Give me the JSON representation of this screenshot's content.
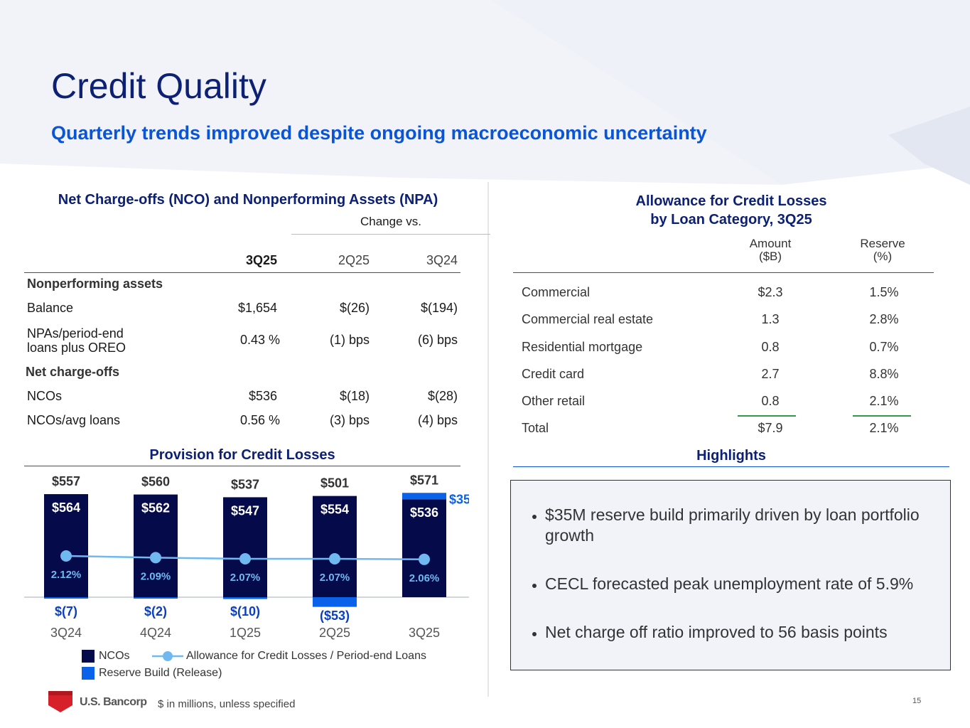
{
  "title": "Credit Quality",
  "subtitle": "Quarterly trends improved despite ongoing macroeconomic uncertainty",
  "nco_section": {
    "title": "Net Charge-offs (NCO) and Nonperforming Assets (NPA)",
    "change_vs": "Change vs.",
    "columns": [
      "3Q25",
      "2Q25",
      "3Q24"
    ],
    "npa_heading": "Nonperforming assets",
    "nco_heading": "Net charge-offs",
    "rows": [
      {
        "label": "Balance",
        "v1": "$1,654",
        "v2": "$(26)",
        "v3": "$(194)"
      },
      {
        "label_line1": "NPAs/period-end",
        "label_line2": "loans plus OREO",
        "v1": "0.43 %",
        "v2": "(1) bps",
        "v3": "(6) bps"
      },
      {
        "label": "NCOs",
        "v1": "$536",
        "v2": "$(18)",
        "v3": "$(28)"
      },
      {
        "label": "NCOs/avg loans",
        "v1": "0.56 %",
        "v2": "(3) bps",
        "v3": "(4) bps"
      }
    ]
  },
  "acl_section": {
    "title_line1": "Allowance for Credit Losses",
    "title_line2": "by Loan Category, 3Q25",
    "col_amount_line1": "Amount",
    "col_amount_line2": "($B)",
    "col_reserve_line1": "Reserve",
    "col_reserve_line2": "(%)",
    "rows": [
      {
        "label": "Commercial",
        "amount": "$2.3",
        "reserve": "1.5%"
      },
      {
        "label": "Commercial real estate",
        "amount": "1.3",
        "reserve": "2.8%"
      },
      {
        "label": "Residential mortgage",
        "amount": "0.8",
        "reserve": "0.7%"
      },
      {
        "label": "Credit card",
        "amount": "2.7",
        "reserve": "8.8%"
      },
      {
        "label": "Other retail",
        "amount": "0.8",
        "reserve": "2.1%"
      },
      {
        "label": "Total",
        "amount": "$7.9",
        "reserve": "2.1%"
      }
    ]
  },
  "provision_title": "Provision for Credit Losses",
  "chart_data": {
    "type": "bar",
    "title": "Provision for Credit Losses",
    "categories": [
      "3Q24",
      "4Q24",
      "1Q25",
      "2Q25",
      "3Q25"
    ],
    "series": [
      {
        "name": "NCOs",
        "values": [
          564,
          562,
          547,
          554,
          536
        ],
        "labels": [
          "$564",
          "$562",
          "$547",
          "$554",
          "$536"
        ]
      },
      {
        "name": "Reserve Build (Release)",
        "values": [
          -7,
          -2,
          -10,
          -53,
          35
        ],
        "labels": [
          "$(7)",
          "$(2)",
          "$(10)",
          "($53)",
          "$35"
        ]
      },
      {
        "name": "Allowance for Credit Losses / Period-end Loans",
        "values": [
          2.12,
          2.09,
          2.07,
          2.07,
          2.06
        ],
        "labels": [
          "2.12%",
          "2.09%",
          "2.07%",
          "2.07%",
          "2.06%"
        ]
      }
    ],
    "totals": [
      557,
      560,
      537,
      501,
      571
    ],
    "total_labels": [
      "$557",
      "$560",
      "$537",
      "$501",
      "$571"
    ],
    "colors": {
      "ncos": "#050a4a",
      "reserve": "#0a61ea",
      "line": "#6fb8f0",
      "pct_text": "#6fb8f0",
      "neg_label": "#0a3fbf"
    }
  },
  "legend": {
    "ncos": "NCOs",
    "line": "Allowance for Credit Losses / Period-end Loans",
    "reserve": "Reserve Build (Release)"
  },
  "highlights": {
    "title": "Highlights",
    "items": [
      "$35M reserve build primarily driven by loan portfolio growth",
      "CECL forecasted peak unemployment rate of 5.9%",
      "Net charge off ratio improved to 56 basis points"
    ]
  },
  "footer": {
    "logo_text": "U.S. Bancorp",
    "note": "$ in millions, unless specified",
    "page_number": "15"
  }
}
